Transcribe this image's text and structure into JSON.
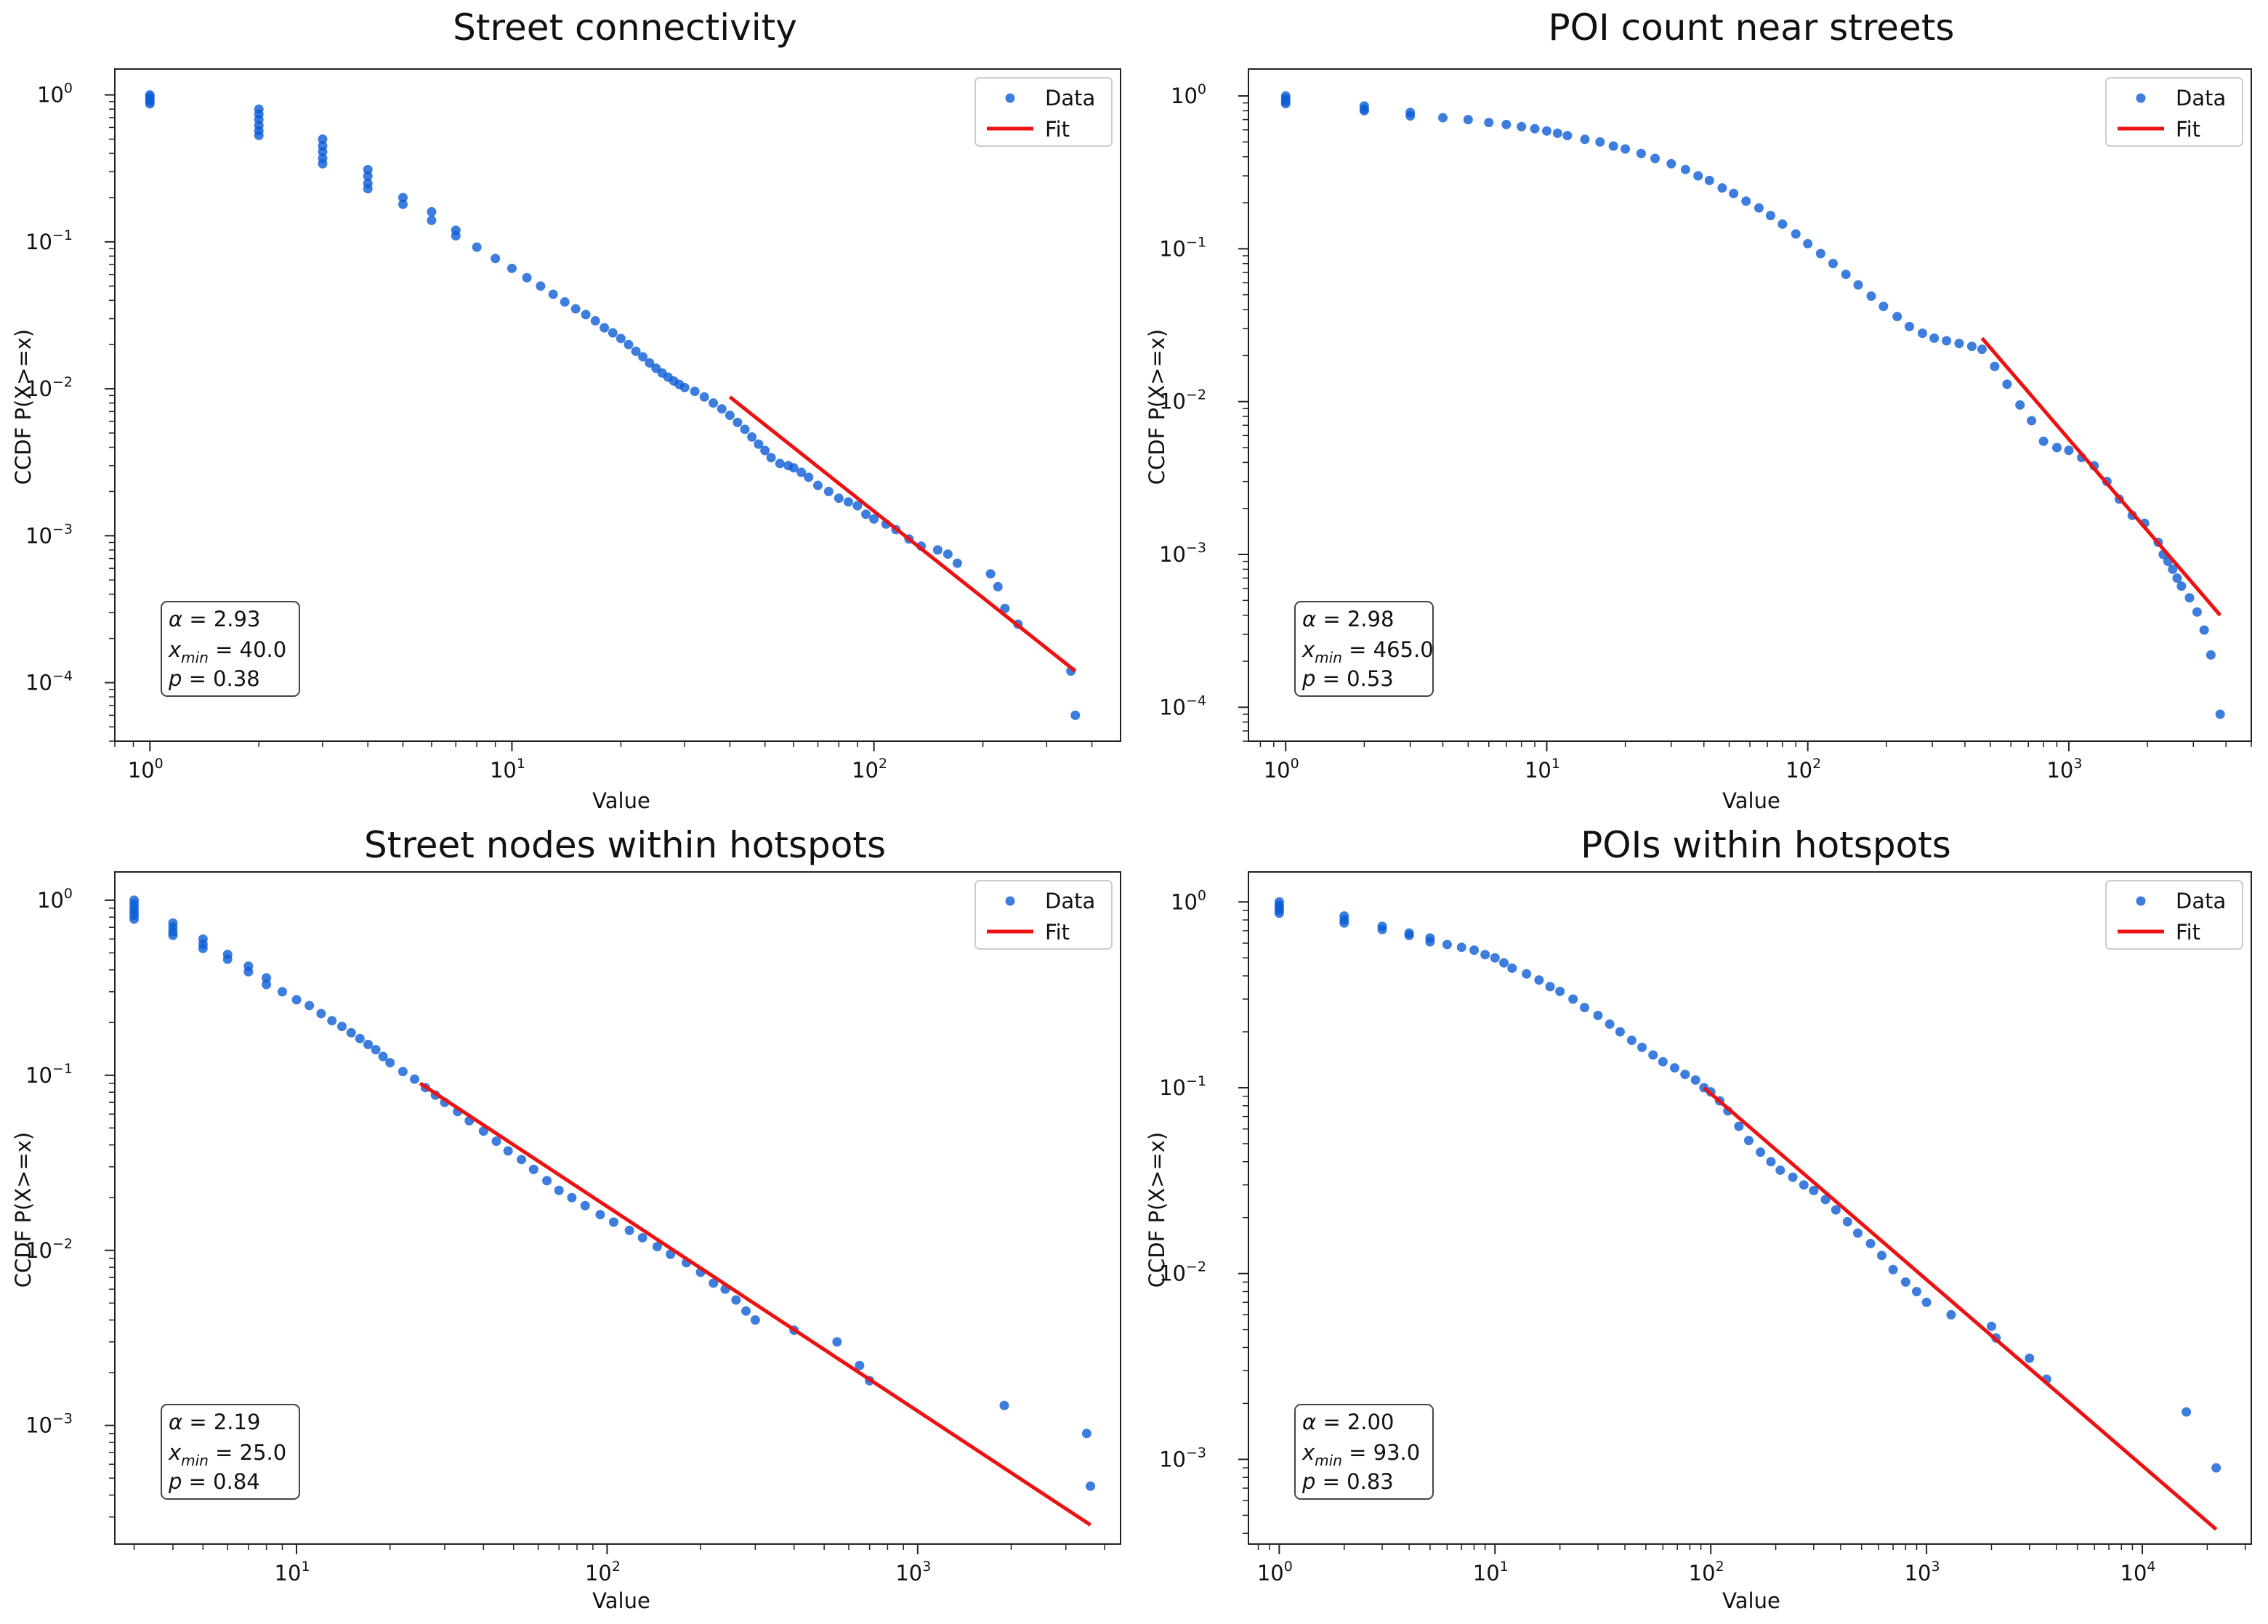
{
  "colors": {
    "data": "#0b5cd6",
    "fit": "#ee1111",
    "text": "#111111",
    "axis": "#222222"
  },
  "chart_data": [
    {
      "type": "scatter",
      "title": "Street connectivity",
      "xlabel": "Value",
      "ylabel": "CCDF P(X>=x)",
      "xscale": "log",
      "yscale": "log",
      "xlim": [
        0.8,
        480
      ],
      "ylim": [
        4e-05,
        1.5
      ],
      "xticks": [
        {
          "v": 1,
          "e": "0"
        },
        {
          "v": 10,
          "e": "1"
        },
        {
          "v": 100,
          "e": "2"
        }
      ],
      "yticks": [
        {
          "v": 0.0001,
          "e": "−4"
        },
        {
          "v": 0.001,
          "e": "−3"
        },
        {
          "v": 0.01,
          "e": "−2"
        },
        {
          "v": 0.1,
          "e": "−1"
        },
        {
          "v": 1,
          "e": "0"
        }
      ],
      "legend": {
        "position": "top-right",
        "data_label": "Data",
        "fit_label": "Fit"
      },
      "annotation": {
        "alpha": "2.93",
        "xmin": "40.0",
        "p": "0.38"
      },
      "x": [
        1,
        1,
        1,
        1,
        1,
        2,
        2,
        2,
        2,
        2,
        2,
        3,
        3,
        3,
        3,
        3,
        4,
        4,
        4,
        4,
        5,
        5,
        6,
        6,
        7,
        7,
        8,
        9,
        10,
        11,
        12,
        13,
        14,
        15,
        16,
        17,
        18,
        19,
        20,
        21,
        22,
        23,
        24,
        25,
        26,
        27,
        28,
        29,
        30,
        32,
        34,
        36,
        38,
        40,
        42,
        44,
        46,
        48,
        50,
        52,
        55,
        58,
        60,
        63,
        66,
        70,
        75,
        80,
        85,
        90,
        95,
        100,
        108,
        115,
        125,
        135,
        150,
        160,
        170,
        210,
        220,
        230,
        250,
        350,
        360
      ],
      "y": [
        1.0,
        0.97,
        0.93,
        0.9,
        0.87,
        0.8,
        0.74,
        0.68,
        0.62,
        0.57,
        0.53,
        0.5,
        0.45,
        0.41,
        0.37,
        0.34,
        0.31,
        0.28,
        0.25,
        0.23,
        0.2,
        0.18,
        0.16,
        0.14,
        0.12,
        0.11,
        0.092,
        0.077,
        0.066,
        0.057,
        0.05,
        0.044,
        0.039,
        0.035,
        0.032,
        0.029,
        0.026,
        0.024,
        0.022,
        0.02,
        0.018,
        0.0165,
        0.015,
        0.0138,
        0.0128,
        0.012,
        0.0113,
        0.0107,
        0.0102,
        0.0096,
        0.0088,
        0.008,
        0.0073,
        0.0066,
        0.0059,
        0.0053,
        0.0047,
        0.0042,
        0.0038,
        0.0034,
        0.0031,
        0.003,
        0.0029,
        0.0027,
        0.0025,
        0.0022,
        0.002,
        0.0018,
        0.0017,
        0.0016,
        0.0014,
        0.0013,
        0.0012,
        0.0011,
        0.00095,
        0.00085,
        0.0008,
        0.00075,
        0.00065,
        0.00055,
        0.00045,
        0.00032,
        0.00025,
        0.00012,
        6e-05
      ],
      "fit": {
        "x": [
          40,
          360
        ],
        "y": [
          0.0088,
          0.00012
        ]
      }
    },
    {
      "type": "scatter",
      "title": "POI count near streets",
      "xlabel": "Value",
      "ylabel": "CCDF P(X>=x)",
      "xscale": "log",
      "yscale": "log",
      "xlim": [
        0.72,
        5000
      ],
      "ylim": [
        6e-05,
        1.5
      ],
      "xticks": [
        {
          "v": 1,
          "e": "0"
        },
        {
          "v": 10,
          "e": "1"
        },
        {
          "v": 100,
          "e": "2"
        },
        {
          "v": 1000,
          "e": "3"
        }
      ],
      "yticks": [
        {
          "v": 0.0001,
          "e": "−4"
        },
        {
          "v": 0.001,
          "e": "−3"
        },
        {
          "v": 0.01,
          "e": "−2"
        },
        {
          "v": 0.1,
          "e": "−1"
        },
        {
          "v": 1,
          "e": "0"
        }
      ],
      "legend": {
        "position": "top-right",
        "data_label": "Data",
        "fit_label": "Fit"
      },
      "annotation": {
        "alpha": "2.98",
        "xmin": "465.0",
        "p": "0.53"
      },
      "x": [
        1,
        1,
        1,
        1,
        2,
        2,
        2,
        3,
        3,
        4,
        5,
        6,
        7,
        8,
        9,
        10,
        11,
        12,
        14,
        16,
        18,
        20,
        23,
        26,
        30,
        34,
        38,
        42,
        47,
        52,
        58,
        65,
        72,
        80,
        90,
        100,
        112,
        125,
        140,
        156,
        175,
        195,
        220,
        245,
        275,
        305,
        340,
        380,
        425,
        465,
        520,
        580,
        650,
        720,
        800,
        900,
        1000,
        1120,
        1250,
        1400,
        1560,
        1750,
        1950,
        2200,
        2300,
        2400,
        2500,
        2600,
        2700,
        2900,
        3100,
        3300,
        3500,
        3800
      ],
      "y": [
        1.0,
        0.96,
        0.92,
        0.89,
        0.86,
        0.82,
        0.8,
        0.78,
        0.74,
        0.72,
        0.7,
        0.67,
        0.65,
        0.63,
        0.61,
        0.59,
        0.57,
        0.55,
        0.52,
        0.5,
        0.47,
        0.45,
        0.42,
        0.39,
        0.36,
        0.33,
        0.3,
        0.28,
        0.25,
        0.23,
        0.205,
        0.185,
        0.165,
        0.145,
        0.125,
        0.108,
        0.093,
        0.08,
        0.068,
        0.058,
        0.049,
        0.042,
        0.036,
        0.031,
        0.028,
        0.026,
        0.025,
        0.024,
        0.023,
        0.022,
        0.017,
        0.013,
        0.0095,
        0.0075,
        0.0055,
        0.005,
        0.0048,
        0.0043,
        0.0038,
        0.003,
        0.0023,
        0.0018,
        0.0016,
        0.0012,
        0.001,
        0.0009,
        0.0008,
        0.0007,
        0.00062,
        0.00052,
        0.00042,
        0.00032,
        0.00022,
        9e-05
      ],
      "fit": {
        "x": [
          465,
          3800
        ],
        "y": [
          0.026,
          0.0004
        ]
      }
    },
    {
      "type": "scatter",
      "title": "Street nodes within hotspots",
      "xlabel": "Value",
      "ylabel": "CCDF P(X>=x)",
      "xscale": "log",
      "yscale": "log",
      "xlim": [
        2.6,
        4500
      ],
      "ylim": [
        0.00021,
        1.45
      ],
      "xticks": [
        {
          "v": 10,
          "e": "1"
        },
        {
          "v": 100,
          "e": "2"
        },
        {
          "v": 1000,
          "e": "3"
        }
      ],
      "yticks": [
        {
          "v": 0.001,
          "e": "−3"
        },
        {
          "v": 0.01,
          "e": "−2"
        },
        {
          "v": 0.1,
          "e": "−1"
        },
        {
          "v": 1,
          "e": "0"
        }
      ],
      "legend": {
        "position": "top-right",
        "data_label": "Data",
        "fit_label": "Fit"
      },
      "annotation": {
        "alpha": "2.19",
        "xmin": "25.0",
        "p": "0.84"
      },
      "x": [
        3,
        3,
        3,
        3,
        3,
        3,
        4,
        4,
        4,
        4,
        5,
        5,
        5,
        6,
        6,
        7,
        7,
        8,
        8,
        9,
        10,
        11,
        12,
        13,
        14,
        15,
        16,
        17,
        18,
        19,
        20,
        22,
        24,
        26,
        28,
        30,
        33,
        36,
        40,
        44,
        48,
        53,
        58,
        64,
        70,
        77,
        85,
        95,
        105,
        118,
        130,
        145,
        160,
        180,
        200,
        220,
        240,
        260,
        280,
        300,
        400,
        550,
        650,
        700,
        1900,
        3500,
        3600
      ],
      "y": [
        1.0,
        0.95,
        0.9,
        0.86,
        0.82,
        0.78,
        0.74,
        0.7,
        0.66,
        0.63,
        0.6,
        0.56,
        0.53,
        0.49,
        0.46,
        0.42,
        0.39,
        0.36,
        0.33,
        0.3,
        0.27,
        0.25,
        0.225,
        0.205,
        0.19,
        0.175,
        0.162,
        0.15,
        0.14,
        0.128,
        0.118,
        0.105,
        0.095,
        0.085,
        0.077,
        0.07,
        0.062,
        0.055,
        0.048,
        0.042,
        0.037,
        0.033,
        0.029,
        0.025,
        0.022,
        0.02,
        0.018,
        0.016,
        0.0145,
        0.013,
        0.0118,
        0.0105,
        0.0095,
        0.0085,
        0.0075,
        0.0065,
        0.006,
        0.0052,
        0.0045,
        0.004,
        0.0035,
        0.003,
        0.0022,
        0.0018,
        0.0013,
        0.0009,
        0.00045
      ],
      "fit": {
        "x": [
          25,
          3600
        ],
        "y": [
          0.09,
          0.00027
        ]
      }
    },
    {
      "type": "scatter",
      "title": "POIs within hotspots",
      "xlabel": "Value",
      "ylabel": "CCDF P(X>=x)",
      "xscale": "log",
      "yscale": "log",
      "xlim": [
        0.72,
        32000
      ],
      "ylim": [
        0.00035,
        1.45
      ],
      "xticks": [
        {
          "v": 1,
          "e": "0"
        },
        {
          "v": 10,
          "e": "1"
        },
        {
          "v": 100,
          "e": "2"
        },
        {
          "v": 1000,
          "e": "3"
        },
        {
          "v": 10000,
          "e": "4"
        }
      ],
      "yticks": [
        {
          "v": 0.001,
          "e": "−3"
        },
        {
          "v": 0.01,
          "e": "−2"
        },
        {
          "v": 0.1,
          "e": "−1"
        },
        {
          "v": 1,
          "e": "0"
        }
      ],
      "legend": {
        "position": "top-right",
        "data_label": "Data",
        "fit_label": "Fit"
      },
      "annotation": {
        "alpha": "2.00",
        "xmin": "93.0",
        "p": "0.83"
      },
      "x": [
        1,
        1,
        1,
        1,
        1,
        2,
        2,
        2,
        3,
        3,
        4,
        4,
        5,
        5,
        6,
        7,
        8,
        9,
        10,
        11,
        12,
        14,
        16,
        18,
        20,
        23,
        26,
        30,
        34,
        38,
        43,
        48,
        54,
        60,
        68,
        76,
        85,
        93,
        100,
        110,
        120,
        135,
        150,
        170,
        190,
        210,
        240,
        270,
        300,
        340,
        380,
        430,
        480,
        550,
        620,
        700,
        800,
        900,
        1000,
        1300,
        2000,
        2100,
        3000,
        3600,
        16000,
        22000
      ],
      "y": [
        1.0,
        0.96,
        0.93,
        0.9,
        0.87,
        0.84,
        0.8,
        0.77,
        0.74,
        0.71,
        0.68,
        0.66,
        0.64,
        0.61,
        0.59,
        0.57,
        0.55,
        0.52,
        0.5,
        0.47,
        0.44,
        0.41,
        0.38,
        0.35,
        0.33,
        0.3,
        0.27,
        0.245,
        0.22,
        0.2,
        0.18,
        0.165,
        0.15,
        0.138,
        0.128,
        0.118,
        0.11,
        0.1,
        0.095,
        0.085,
        0.075,
        0.062,
        0.052,
        0.045,
        0.04,
        0.036,
        0.033,
        0.03,
        0.028,
        0.025,
        0.022,
        0.019,
        0.0165,
        0.0145,
        0.0125,
        0.0105,
        0.009,
        0.008,
        0.007,
        0.006,
        0.0052,
        0.0045,
        0.0035,
        0.0027,
        0.0018,
        0.0009
      ],
      "fit": {
        "x": [
          93,
          22000
        ],
        "y": [
          0.1,
          0.00042
        ]
      }
    }
  ]
}
